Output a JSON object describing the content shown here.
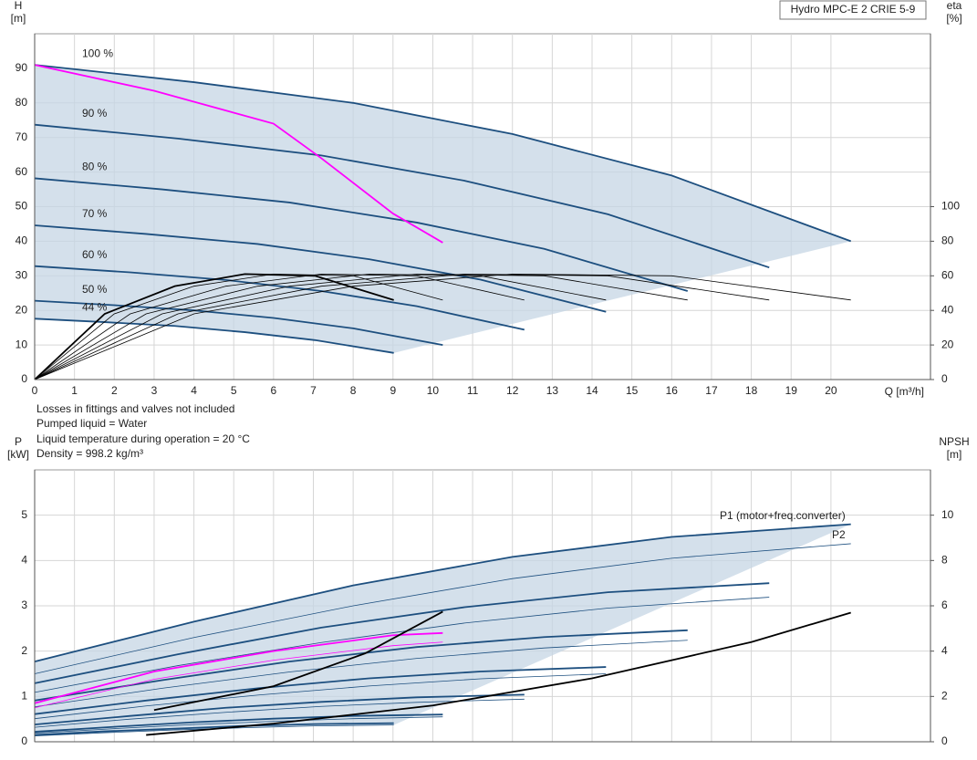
{
  "chart_data": [
    {
      "type": "line",
      "title": "Hydro MPC-E 2 CRIE 5-9",
      "y_label": "H",
      "y_unit": "[m]",
      "y2_label": "eta",
      "y2_unit": "[%]",
      "x_label": "Q [m³/h]",
      "xlim": [
        0,
        22.5
      ],
      "xticks": [
        0,
        1,
        2,
        3,
        4,
        5,
        6,
        7,
        8,
        9,
        10,
        11,
        12,
        13,
        14,
        15,
        16,
        17,
        18,
        19,
        20
      ],
      "ylim": [
        0,
        100
      ],
      "yticks": [
        0,
        10,
        20,
        30,
        40,
        50,
        60,
        70,
        80,
        90
      ],
      "y2lim": [
        0,
        200
      ],
      "y2ticks": [
        0,
        20,
        40,
        60,
        80,
        100
      ],
      "grid": true,
      "annotations": [
        "Losses in fittings and valves not included",
        "Pumped liquid = Water",
        "Liquid temperature during operation = 20 °C",
        "Density = 998.2 kg/m³"
      ],
      "series": [
        {
          "name": "100 %",
          "color": "#1d4f7f",
          "style": "thick",
          "x": [
            0,
            4,
            8,
            12,
            16,
            20.5
          ],
          "values": [
            91,
            86,
            80,
            71,
            59,
            40
          ]
        },
        {
          "name": "90 %",
          "color": "#1d4f7f",
          "style": "thick",
          "x": [
            0,
            3.6,
            7.2,
            10.8,
            14.4,
            18.45
          ],
          "values": [
            73.7,
            69.7,
            64.8,
            57.5,
            47.8,
            32.4
          ]
        },
        {
          "name": "80 %",
          "color": "#1d4f7f",
          "style": "thick",
          "x": [
            0,
            3.2,
            6.4,
            9.6,
            12.8,
            16.4
          ],
          "values": [
            58.2,
            55,
            51.2,
            45.4,
            37.8,
            25.6
          ]
        },
        {
          "name": "70 %",
          "color": "#1d4f7f",
          "style": "thick",
          "x": [
            0,
            2.8,
            5.6,
            8.4,
            11.2,
            14.35
          ],
          "values": [
            44.6,
            42.1,
            39.2,
            34.8,
            28.9,
            19.6
          ]
        },
        {
          "name": "60 %",
          "color": "#1d4f7f",
          "style": "thick",
          "x": [
            0,
            2.4,
            4.8,
            7.2,
            9.6,
            12.3
          ],
          "values": [
            32.8,
            31,
            28.8,
            25.6,
            21.2,
            14.4
          ]
        },
        {
          "name": "50 %",
          "color": "#1d4f7f",
          "style": "thick",
          "x": [
            0,
            2,
            4,
            6,
            8,
            10.25
          ],
          "values": [
            22.8,
            21.5,
            20,
            17.8,
            14.8,
            10
          ]
        },
        {
          "name": "44 %",
          "color": "#1d4f7f",
          "style": "thick",
          "x": [
            0,
            1.76,
            3.52,
            5.28,
            7.04,
            9.02
          ],
          "values": [
            17.6,
            16.6,
            15.5,
            13.7,
            11.4,
            7.7
          ]
        },
        {
          "color": "#ff00ff",
          "style": "thick",
          "x": [
            0,
            3,
            6,
            7.2,
            9,
            10.25
          ],
          "values": [
            91,
            83.5,
            74,
            64,
            48,
            39.6
          ]
        },
        {
          "color": "#000000",
          "style": "thin",
          "axis": "y2",
          "x": [
            0,
            4,
            8,
            12,
            16,
            20.5
          ],
          "values": [
            0,
            38,
            54,
            61,
            60,
            46
          ]
        },
        {
          "color": "#000000",
          "style": "thin",
          "axis": "y2",
          "x": [
            0,
            3.6,
            7.2,
            10.8,
            14.4,
            18.45
          ],
          "values": [
            0,
            38,
            54,
            61,
            60,
            46
          ]
        },
        {
          "color": "#000000",
          "style": "thin",
          "axis": "y2",
          "x": [
            0,
            3.2,
            6.4,
            9.6,
            12.8,
            16.4
          ],
          "values": [
            0,
            38,
            54,
            61,
            60,
            46
          ]
        },
        {
          "color": "#000000",
          "style": "thin",
          "axis": "y2",
          "x": [
            0,
            2.8,
            5.6,
            8.4,
            11.2,
            14.35
          ],
          "values": [
            0,
            38,
            54,
            61,
            60,
            46
          ]
        },
        {
          "color": "#000000",
          "style": "thin",
          "axis": "y2",
          "x": [
            0,
            2.4,
            4.8,
            7.2,
            9.6,
            12.3
          ],
          "values": [
            0,
            38,
            54,
            61,
            60,
            46
          ]
        },
        {
          "color": "#000000",
          "style": "thin",
          "axis": "y2",
          "x": [
            0,
            2,
            4,
            6,
            8,
            10.25
          ],
          "values": [
            0,
            38,
            54,
            61,
            60,
            46
          ]
        },
        {
          "color": "#000000",
          "style": "thick",
          "axis": "y2",
          "x": [
            0,
            1.76,
            3.52,
            5.28,
            7.04,
            9.02
          ],
          "values": [
            0,
            38,
            54,
            61,
            60,
            46
          ]
        }
      ]
    },
    {
      "type": "line",
      "y_label": "P",
      "y_unit": "[kW]",
      "y2_label": "NPSH",
      "y2_unit": "[m]",
      "xlim": [
        0,
        22.5
      ],
      "xticks": [
        0,
        1,
        2,
        3,
        4,
        5,
        6,
        7,
        8,
        9,
        10,
        11,
        12,
        13,
        14,
        15,
        16,
        17,
        18,
        19,
        20
      ],
      "ylim": [
        0,
        6
      ],
      "yticks": [
        0,
        1,
        2,
        3,
        4,
        5
      ],
      "y2lim": [
        0,
        12
      ],
      "y2ticks": [
        0,
        2,
        4,
        6,
        8,
        10
      ],
      "grid": true,
      "series": [
        {
          "name": "P1 (motor+freq.converter)",
          "color": "#1d4f7f",
          "style": "thick",
          "x": [
            0,
            4,
            8,
            12,
            16,
            20.5
          ],
          "values": [
            1.77,
            2.65,
            3.45,
            4.08,
            4.52,
            4.8
          ]
        },
        {
          "color": "#1d4f7f",
          "style": "thick",
          "x": [
            0,
            3.6,
            7.2,
            10.8,
            14.4,
            18.45
          ],
          "values": [
            1.29,
            1.93,
            2.52,
            2.97,
            3.3,
            3.5
          ]
        },
        {
          "color": "#1d4f7f",
          "style": "thick",
          "x": [
            0,
            3.2,
            6.4,
            9.6,
            12.8,
            16.4
          ],
          "values": [
            0.91,
            1.36,
            1.77,
            2.09,
            2.31,
            2.46
          ]
        },
        {
          "color": "#1d4f7f",
          "style": "thick",
          "x": [
            0,
            2.8,
            5.6,
            8.4,
            11.2,
            14.35
          ],
          "values": [
            0.61,
            0.91,
            1.18,
            1.4,
            1.55,
            1.65
          ]
        },
        {
          "color": "#1d4f7f",
          "style": "thick",
          "x": [
            0,
            2.4,
            4.8,
            7.2,
            9.6,
            12.3
          ],
          "values": [
            0.38,
            0.57,
            0.75,
            0.88,
            0.98,
            1.04
          ]
        },
        {
          "color": "#1d4f7f",
          "style": "thick",
          "x": [
            0,
            2,
            4,
            6,
            8,
            10.25
          ],
          "values": [
            0.22,
            0.33,
            0.43,
            0.51,
            0.57,
            0.6
          ]
        },
        {
          "color": "#1d4f7f",
          "style": "thick",
          "x": [
            0,
            1.76,
            3.52,
            5.28,
            7.04,
            9.02
          ],
          "values": [
            0.15,
            0.23,
            0.29,
            0.35,
            0.39,
            0.41
          ]
        },
        {
          "name": "P2",
          "color": "#1d4f7f",
          "style": "thin",
          "x": [
            0,
            4,
            8,
            12,
            16,
            20.5
          ],
          "values": [
            1.5,
            2.3,
            3,
            3.6,
            4.05,
            4.37
          ]
        },
        {
          "color": "#1d4f7f",
          "style": "thin",
          "x": [
            0,
            3.6,
            7.2,
            10.8,
            14.4,
            18.45
          ],
          "values": [
            1.09,
            1.68,
            2.19,
            2.62,
            2.95,
            3.19
          ]
        },
        {
          "color": "#1d4f7f",
          "style": "thin",
          "x": [
            0,
            3.2,
            6.4,
            9.6,
            12.8,
            16.4
          ],
          "values": [
            0.77,
            1.18,
            1.54,
            1.84,
            2.07,
            2.24
          ]
        },
        {
          "color": "#1d4f7f",
          "style": "thin",
          "x": [
            0,
            2.8,
            5.6,
            8.4,
            11.2,
            14.35
          ],
          "values": [
            0.51,
            0.79,
            1.03,
            1.23,
            1.39,
            1.5
          ]
        },
        {
          "color": "#1d4f7f",
          "style": "thin",
          "x": [
            0,
            2.4,
            4.8,
            7.2,
            9.6,
            12.3
          ],
          "values": [
            0.32,
            0.5,
            0.65,
            0.78,
            0.87,
            0.94
          ]
        },
        {
          "color": "#1d4f7f",
          "style": "thin",
          "x": [
            0,
            2,
            4,
            6,
            8,
            10.25
          ],
          "values": [
            0.19,
            0.29,
            0.38,
            0.45,
            0.51,
            0.55
          ]
        },
        {
          "color": "#1d4f7f",
          "style": "thin",
          "x": [
            0,
            1.76,
            3.52,
            5.28,
            7.04,
            9.02
          ],
          "values": [
            0.13,
            0.2,
            0.26,
            0.31,
            0.35,
            0.37
          ]
        },
        {
          "color": "#ff00ff",
          "style": "thick",
          "x": [
            0,
            3,
            6,
            9,
            10.25
          ],
          "values": [
            0.85,
            1.55,
            2,
            2.35,
            2.4
          ]
        },
        {
          "color": "#ff00ff",
          "style": "thin",
          "x": [
            0,
            3,
            6,
            9,
            10.25
          ],
          "values": [
            0.75,
            1.38,
            1.8,
            2.12,
            2.2
          ]
        },
        {
          "color": "#000000",
          "style": "thick",
          "axis": "y2",
          "x": [
            2.8,
            6,
            10,
            14,
            18,
            20.5
          ],
          "values": [
            0.3,
            0.8,
            1.6,
            2.8,
            4.4,
            5.7
          ]
        },
        {
          "color": "#000000",
          "style": "thick",
          "axis": "y2",
          "x": [
            3,
            6,
            8.3,
            10.25
          ],
          "values": [
            1.4,
            2.45,
            3.9,
            5.74
          ]
        }
      ]
    }
  ]
}
